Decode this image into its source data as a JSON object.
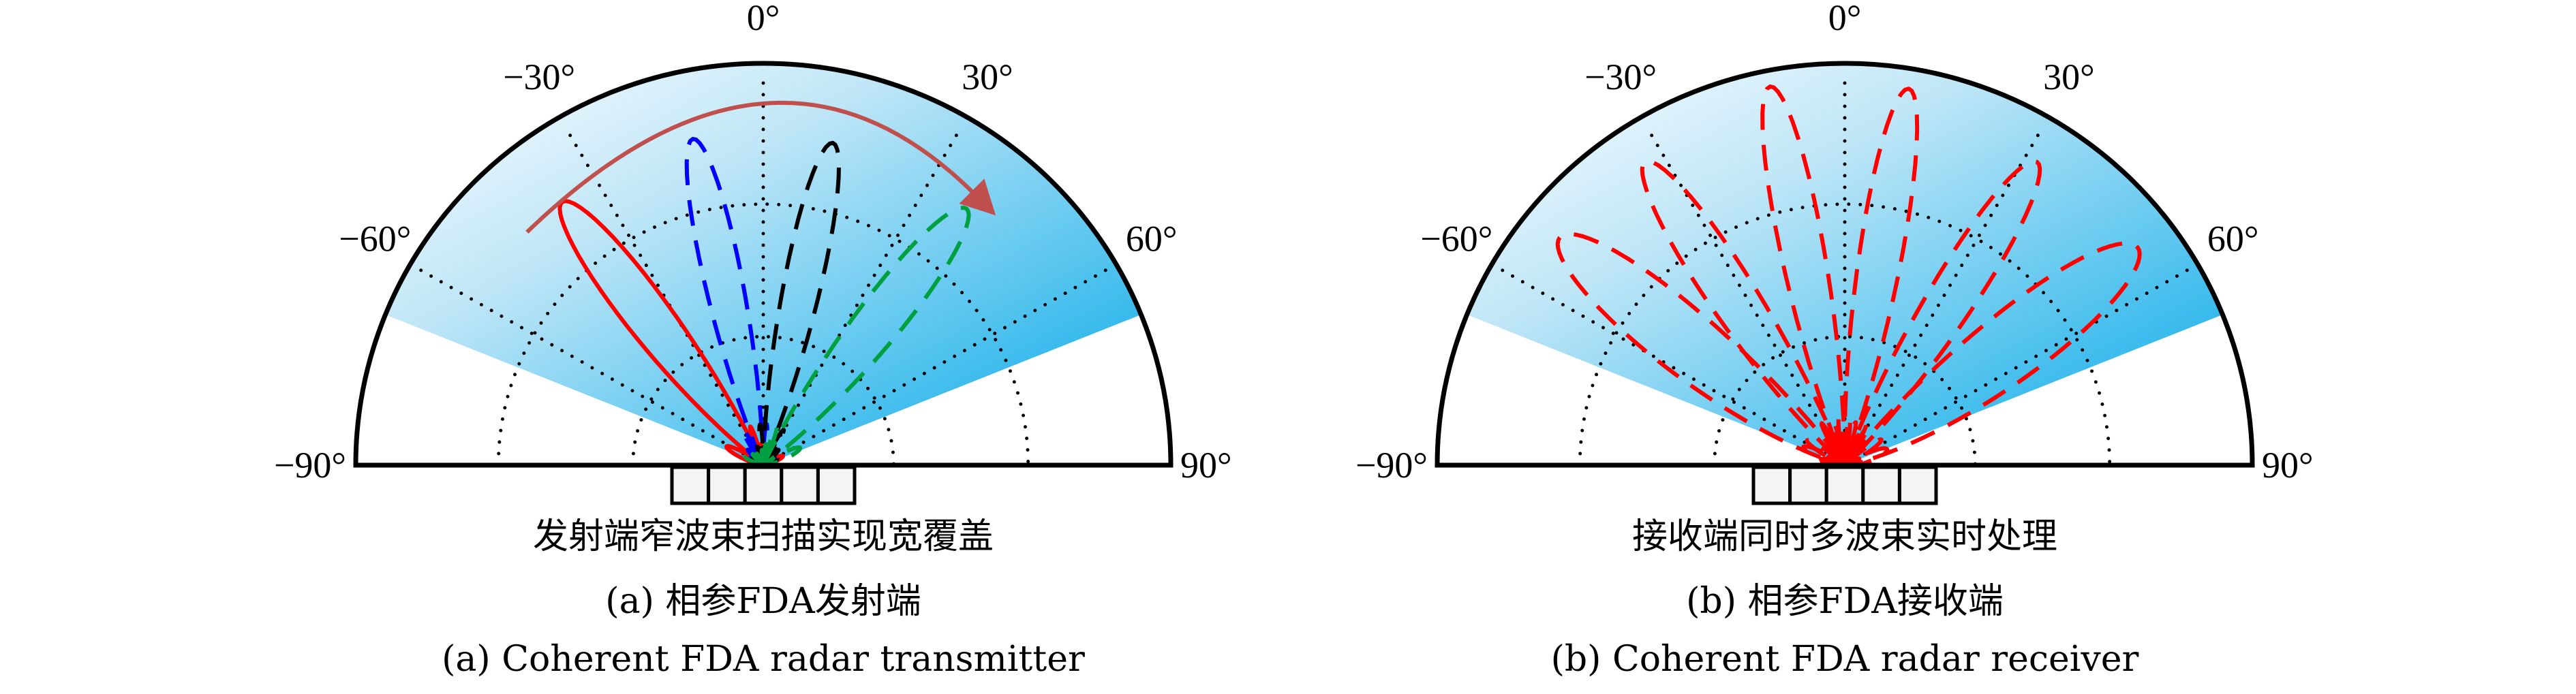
{
  "chart_data": [
    {
      "type": "polar",
      "panel": "a",
      "angle_ticks": [
        "-90°",
        "-60°",
        "-30°",
        "0°",
        "30°",
        "60°",
        "90°"
      ],
      "angle_tick_values": [
        -90,
        -60,
        -30,
        0,
        30,
        60,
        90
      ],
      "angle_range": [
        -90,
        90
      ],
      "grid": "dotted",
      "coverage_sector_deg": [
        -68,
        68
      ],
      "coverage_color": "#00a8e8",
      "array_elements": 5,
      "scan_arrow": {
        "from_deg": -45,
        "to_deg": 38,
        "color": "#c0504d"
      },
      "beams": [
        {
          "direction_deg": -37,
          "peak": 0.82,
          "color": "#ff0000",
          "style": "solid"
        },
        {
          "direction_deg": -12,
          "peak": 0.83,
          "color": "#0000ff",
          "style": "dashed"
        },
        {
          "direction_deg": 12,
          "peak": 0.82,
          "color": "#000000",
          "style": "dashed"
        },
        {
          "direction_deg": 38,
          "peak": 0.81,
          "color": "#00a040",
          "style": "dashed"
        }
      ],
      "caption_line1": "发射端窄波束扫描实现宽覆盖",
      "caption_line2": "(a) 相参FDA发射端",
      "caption_line3": "(a) Coherent FDA radar transmitter"
    },
    {
      "type": "polar",
      "panel": "b",
      "angle_ticks": [
        "-90°",
        "-60°",
        "-30°",
        "0°",
        "30°",
        "60°",
        "90°"
      ],
      "angle_tick_values": [
        -90,
        -60,
        -30,
        0,
        30,
        60,
        90
      ],
      "angle_range": [
        -90,
        90
      ],
      "grid": "dotted",
      "coverage_sector_deg": [
        -68,
        68
      ],
      "coverage_color": "#00a8e8",
      "array_elements": 5,
      "beams": [
        {
          "direction_deg": -51,
          "peak": 0.9,
          "color": "#ff0000",
          "style": "dashed"
        },
        {
          "direction_deg": -33,
          "peak": 0.9,
          "color": "#ff0000",
          "style": "dashed"
        },
        {
          "direction_deg": -11,
          "peak": 0.96,
          "color": "#ff0000",
          "style": "dashed"
        },
        {
          "direction_deg": 9.5,
          "peak": 0.95,
          "color": "#ff0000",
          "style": "dashed"
        },
        {
          "direction_deg": 32,
          "peak": 0.89,
          "color": "#ff0000",
          "style": "dashed"
        },
        {
          "direction_deg": 53,
          "peak": 0.9,
          "color": "#ff0000",
          "style": "dashed"
        }
      ],
      "caption_line1": "接收端同时多波束实时处理",
      "caption_line2": "(b) 相参FDA接收端",
      "caption_line3": "(b) Coherent FDA radar receiver"
    }
  ]
}
